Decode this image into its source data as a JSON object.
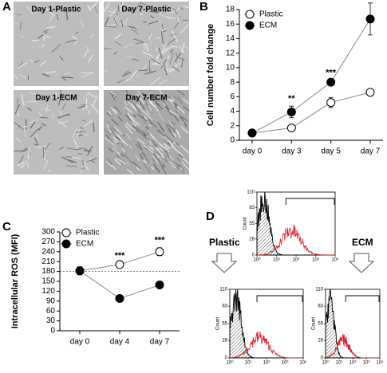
{
  "panel_a": {
    "label": "A",
    "images": [
      "Day 1-Plastic",
      "Day 7-Plastic",
      "Day 1-ECM",
      "Day 7-ECM"
    ]
  },
  "chart_data": [
    {
      "type": "line",
      "panel_label": "B",
      "ylabel": "Cell number fold change",
      "categories": [
        "day 0",
        "day 3",
        "day 5",
        "day 7"
      ],
      "series": [
        {
          "name": "Plastic",
          "color": "#000000",
          "line_color": "#8a8a8a",
          "marker": "open",
          "values": [
            1,
            1.7,
            5.2,
            6.6
          ],
          "errors": [
            0.1,
            0.3,
            0.7,
            0.3
          ]
        },
        {
          "name": "ECM",
          "color": "#000000",
          "line_color": "#8a8a8a",
          "marker": "filled",
          "values": [
            1,
            3.9,
            8.0,
            16.7
          ],
          "errors": [
            0.1,
            0.8,
            0.3,
            2.2
          ]
        }
      ],
      "annotations": [
        {
          "x": "day 3",
          "text": "**"
        },
        {
          "x": "day 5",
          "text": "***"
        },
        {
          "x": "day 7",
          "text": "***"
        }
      ],
      "ylim": [
        0,
        18
      ],
      "yticks": [
        0,
        2,
        4,
        6,
        8,
        10,
        12,
        14,
        16,
        18
      ],
      "legend": "upper left"
    },
    {
      "type": "line",
      "panel_label": "C",
      "ylabel": "Intracellular ROS (MFI)",
      "categories": [
        "day 0",
        "day 4",
        "day 7"
      ],
      "series": [
        {
          "name": "Plastic",
          "color": "#000000",
          "line_color": "#8a8a8a",
          "marker": "open",
          "values": [
            182,
            201,
            240
          ],
          "errors": [
            12,
            5,
            12
          ]
        },
        {
          "name": "ECM",
          "color": "#000000",
          "line_color": "#8a8a8a",
          "marker": "filled",
          "values": [
            182,
            98,
            139
          ],
          "errors": [
            12,
            8,
            5
          ]
        }
      ],
      "annotations": [
        {
          "x": "day 4",
          "text": "***"
        },
        {
          "x": "day 7",
          "text": "***"
        }
      ],
      "reference_line": 180,
      "ylim": [
        0,
        300
      ],
      "yticks": [
        0,
        30,
        60,
        90,
        120,
        150,
        180,
        210,
        240,
        270,
        300
      ],
      "legend": "upper left"
    }
  ],
  "panel_d": {
    "label": "D",
    "ylabel": "Count",
    "conditions": [
      "Plastic",
      "ECM"
    ],
    "ylim": [
      0,
      110
    ],
    "yticks": [
      0,
      28,
      55,
      83,
      110
    ],
    "xscale": "log",
    "xlim": [
      1,
      10000
    ],
    "xticks": [
      {
        "value": 1,
        "label": "10⁰"
      },
      {
        "value": 10,
        "label": "10¹"
      },
      {
        "value": 100,
        "label": "10²"
      },
      {
        "value": 1000,
        "label": "10³"
      },
      {
        "value": 10000,
        "label": "10⁴"
      }
    ]
  }
}
